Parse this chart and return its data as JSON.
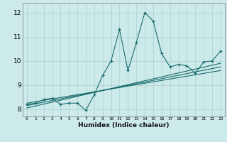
{
  "x_data": [
    0,
    1,
    2,
    3,
    4,
    5,
    6,
    7,
    8,
    9,
    10,
    11,
    12,
    13,
    14,
    15,
    16,
    17,
    18,
    19,
    20,
    21,
    22,
    23
  ],
  "y_data": [
    8.2,
    8.25,
    8.4,
    8.45,
    8.2,
    8.25,
    8.25,
    7.95,
    8.6,
    9.4,
    10.0,
    11.3,
    9.6,
    10.75,
    12.0,
    11.65,
    10.3,
    9.75,
    9.85,
    9.8,
    9.5,
    9.95,
    10.0,
    10.4
  ],
  "reg_lines": [
    {
      "x0": 0,
      "y0": 8.05,
      "x1": 23,
      "y1": 9.9
    },
    {
      "x0": 0,
      "y0": 8.15,
      "x1": 23,
      "y1": 9.75
    },
    {
      "x0": 0,
      "y0": 8.25,
      "x1": 23,
      "y1": 9.6
    }
  ],
  "bg_color": "#cceaea",
  "grid_color": "#b0d4d4",
  "line_color": "#1a6b6b",
  "xlabel": "Humidex (Indice chaleur)",
  "ylim": [
    7.7,
    12.4
  ],
  "xlim": [
    -0.5,
    23.5
  ],
  "yticks": [
    8,
    9,
    10,
    11,
    12
  ],
  "xticks": [
    0,
    1,
    2,
    3,
    4,
    5,
    6,
    7,
    8,
    9,
    10,
    11,
    12,
    13,
    14,
    15,
    16,
    17,
    18,
    19,
    20,
    21,
    22,
    23
  ]
}
